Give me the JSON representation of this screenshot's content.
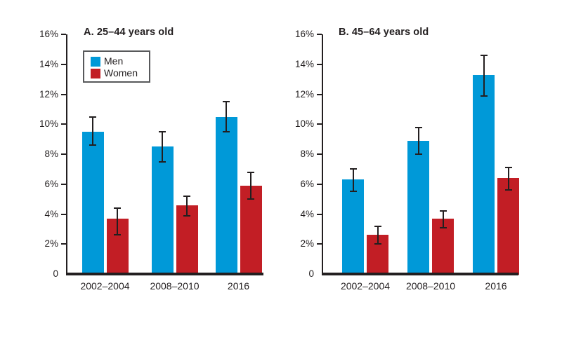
{
  "figure": {
    "background": "#FFFFFF"
  },
  "colors": {
    "men": "#0099D8",
    "women": "#C21E25",
    "axis": "#231F20",
    "text": "#231F20",
    "legend_border": "#58595B"
  },
  "legend": {
    "items": [
      {
        "label": "Men",
        "color": "#0099D8"
      },
      {
        "label": "Women",
        "color": "#C21E25"
      }
    ],
    "position": "upper-left-inside-panel-a"
  },
  "chart_data": [
    {
      "type": "bar",
      "panel_label": "A. 25–44 years old",
      "categories": [
        "2002–2004",
        "2008–2010",
        "2016"
      ],
      "series": [
        {
          "name": "Men",
          "color": "#0099D8",
          "values": [
            9.5,
            8.5,
            10.5
          ],
          "error_low": [
            8.6,
            7.5,
            9.5
          ],
          "error_high": [
            10.5,
            9.5,
            11.5
          ]
        },
        {
          "name": "Women",
          "color": "#C21E25",
          "values": [
            3.7,
            4.6,
            5.9
          ],
          "error_low": [
            2.6,
            3.9,
            5.0
          ],
          "error_high": [
            4.4,
            5.2,
            6.8
          ]
        }
      ],
      "xlabel": "",
      "ylabel": "",
      "ylim": [
        0,
        16
      ],
      "ytick_step": 2,
      "ytick_suffix": "%",
      "ytick_zero_label": "0",
      "grid": false,
      "error_bars": true
    },
    {
      "type": "bar",
      "panel_label": "B. 45–64 years old",
      "categories": [
        "2002–2004",
        "2008–2010",
        "2016"
      ],
      "series": [
        {
          "name": "Men",
          "color": "#0099D8",
          "values": [
            6.3,
            8.9,
            13.3
          ],
          "error_low": [
            5.5,
            8.0,
            11.9
          ],
          "error_high": [
            7.0,
            9.8,
            14.6
          ]
        },
        {
          "name": "Women",
          "color": "#C21E25",
          "values": [
            2.6,
            3.7,
            6.4
          ],
          "error_low": [
            2.0,
            3.1,
            5.6
          ],
          "error_high": [
            3.2,
            4.2,
            7.1
          ]
        }
      ],
      "xlabel": "",
      "ylabel": "",
      "ylim": [
        0,
        16
      ],
      "ytick_step": 2,
      "ytick_suffix": "%",
      "ytick_zero_label": "0",
      "grid": false,
      "error_bars": true
    }
  ]
}
